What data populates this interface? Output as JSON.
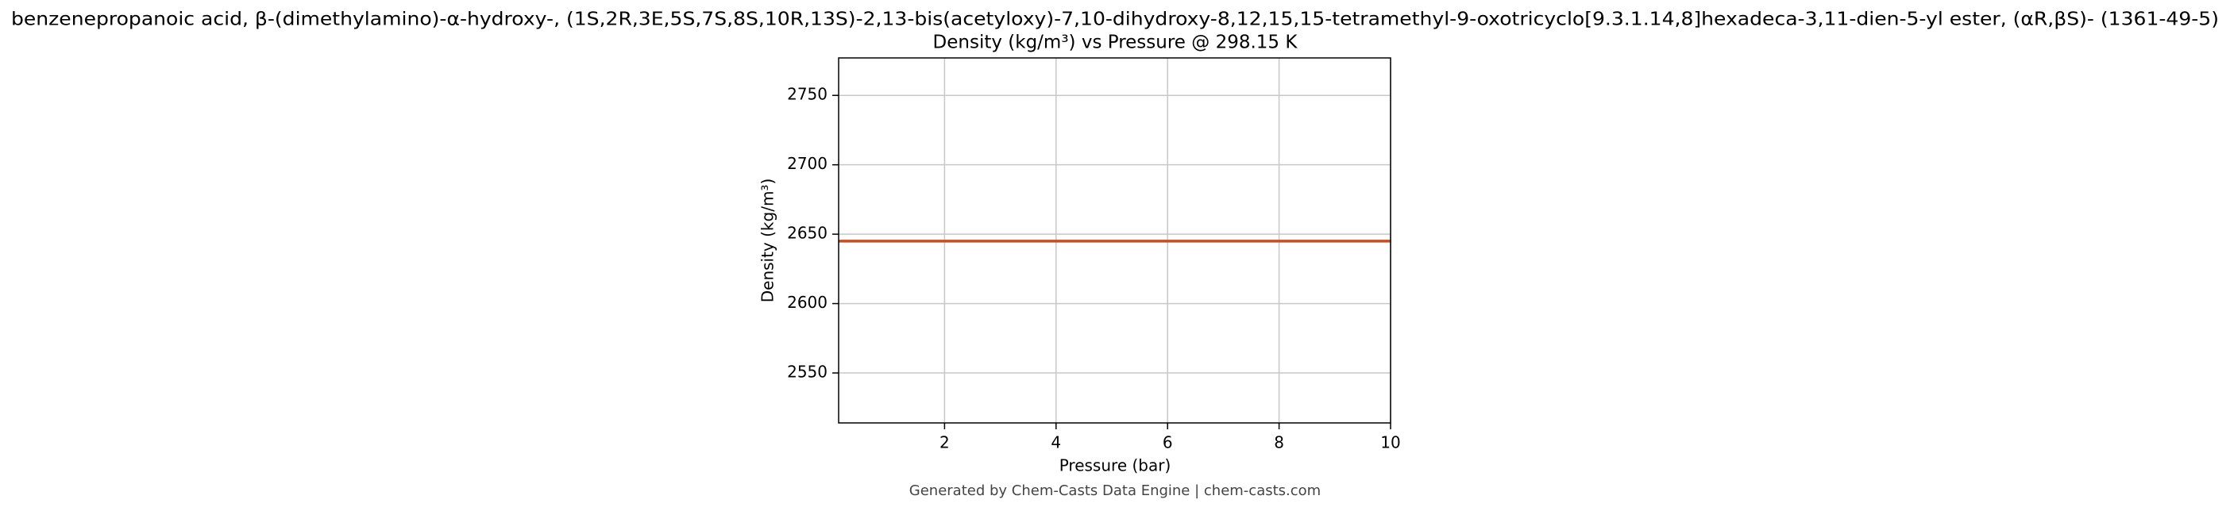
{
  "chart_data": {
    "type": "line",
    "title": "benzenepropanoic acid, β-(dimethylamino)-α-hydroxy-, (1S,2R,3E,5S,7S,8S,10R,13S)-2,13-bis(acetyloxy)-7,10-dihydroxy-8,12,15,15-tetramethyl-9-oxotricyclo[9.3.1.14,8]hexadeca-3,11-dien-5-yl ester, (αR,βS)- (1361-49-5)",
    "subtitle": "Density (kg/m³) vs Pressure @ 298.15 K",
    "x_label": "Pressure (bar)",
    "y_label": "Density (kg/m³)",
    "x": [
      0.1,
      10
    ],
    "series": [
      {
        "name": "Density",
        "color": "#cc4c1c",
        "values": [
          2645,
          2645
        ]
      }
    ],
    "xlim": [
      0.1,
      10
    ],
    "xticks": [
      2,
      4,
      6,
      8,
      10
    ],
    "ylim": [
      2514,
      2777
    ],
    "yticks": [
      2550,
      2600,
      2650,
      2700,
      2750
    ],
    "grid": true,
    "footer": "Generated by Chem-Casts Data Engine | chem-casts.com"
  }
}
